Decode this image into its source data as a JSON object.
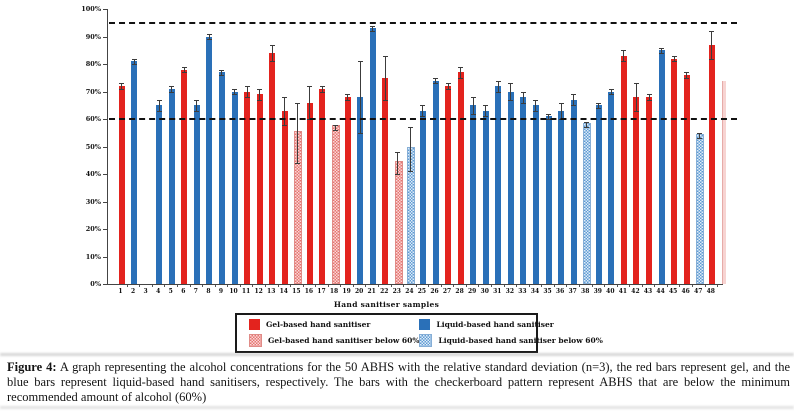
{
  "figure": {
    "caption_label": "Figure 4:",
    "caption_text": " A graph representing the alcohol concentrations for the 50 ABHS with the relative standard deviation (n=3), the red bars represent gel, and the blue bars represent liquid-based hand sanitisers, respectively. The bars with the checkerboard pattern represent ABHS that are below the minimum recommended amount of alcohol (60%)"
  },
  "colors": {
    "gel_red": "#e3231e",
    "liquid_blue": "#2a70b8",
    "gel_below_pink": "#f0a8a4",
    "liquid_below_light_blue": "#a8c9e8",
    "reference_line_black": "#121212",
    "error_bar_grey": "#3c3c3c"
  },
  "chart_data": {
    "type": "bar",
    "title": "",
    "xlabel": "Hand sanitiser samples",
    "ylabel": "",
    "ylim": [
      0,
      100
    ],
    "yticks": [
      "0%",
      "10%",
      "20%",
      "30%",
      "40%",
      "50%",
      "60%",
      "70%",
      "80%",
      "90%",
      "100%"
    ],
    "reference_lines": [
      {
        "y": 95,
        "style": "dashed"
      },
      {
        "y": 60,
        "style": "dashed"
      }
    ],
    "legend": [
      {
        "label": "Gel-based hand sanitiser",
        "swatch": "gel"
      },
      {
        "label": "Liquid-based hand sanitiser",
        "swatch": "liquid"
      },
      {
        "label": "Gel-based hand sanitiser below 60%",
        "swatch": "gel_below"
      },
      {
        "label": "Liquid-based hand sanitiser below 60%",
        "swatch": "liquid_below"
      }
    ],
    "legend_position": "bottom",
    "grid": false,
    "categories": [
      "1",
      "2",
      "3",
      "4",
      "5",
      "6",
      "7",
      "8",
      "9",
      "10",
      "11",
      "12",
      "13",
      "14",
      "15",
      "16",
      "17",
      "18",
      "19",
      "20",
      "21",
      "22",
      "23",
      "24",
      "25",
      "26",
      "27",
      "28",
      "29",
      "30",
      "31",
      "32",
      "33",
      "34",
      "35",
      "36",
      "37",
      "38",
      "39",
      "40",
      "41",
      "42",
      "43",
      "44",
      "45",
      "46",
      "47",
      "48"
    ],
    "series": [
      {
        "name": "Alcohol concentration (%)",
        "values": [
          72,
          81,
          null,
          65,
          71,
          78,
          65,
          90,
          77,
          70,
          70,
          69,
          84,
          63,
          55,
          66,
          71,
          57,
          68,
          68,
          93,
          75,
          44,
          49,
          63,
          74,
          72,
          77,
          65,
          63,
          72,
          70,
          68,
          65,
          61,
          63,
          67,
          58,
          65,
          70,
          83,
          68,
          68,
          85,
          82,
          76,
          54,
          87
        ],
        "types": [
          "gel",
          "liquid",
          null,
          "liquid",
          "liquid",
          "gel",
          "liquid",
          "liquid",
          "liquid",
          "liquid",
          "gel",
          "gel",
          "gel",
          "gel",
          "gel_below",
          "gel",
          "gel",
          "gel_below",
          "gel",
          "liquid",
          "liquid",
          "gel",
          "gel_below",
          "liquid_below",
          "liquid",
          "liquid",
          "gel",
          "gel",
          "liquid",
          "liquid",
          "liquid",
          "liquid",
          "liquid",
          "liquid",
          "liquid",
          "liquid",
          "liquid",
          "liquid_below",
          "liquid",
          "liquid",
          "gel",
          "gel",
          "gel",
          "liquid",
          "gel",
          "gel",
          "liquid_below",
          "gel"
        ],
        "errors": [
          1,
          1,
          null,
          2,
          1,
          1,
          2,
          1,
          1,
          1,
          2,
          2,
          3,
          5,
          11,
          6,
          1,
          1,
          1,
          13,
          1,
          8,
          4,
          8,
          2,
          1,
          1,
          2,
          3,
          2,
          2,
          3,
          2,
          2,
          1,
          3,
          2,
          1,
          1,
          1,
          2,
          5,
          1,
          1,
          1,
          1,
          1,
          5
        ]
      }
    ],
    "cropped_right_bar": {
      "approx_value": 74
    }
  }
}
